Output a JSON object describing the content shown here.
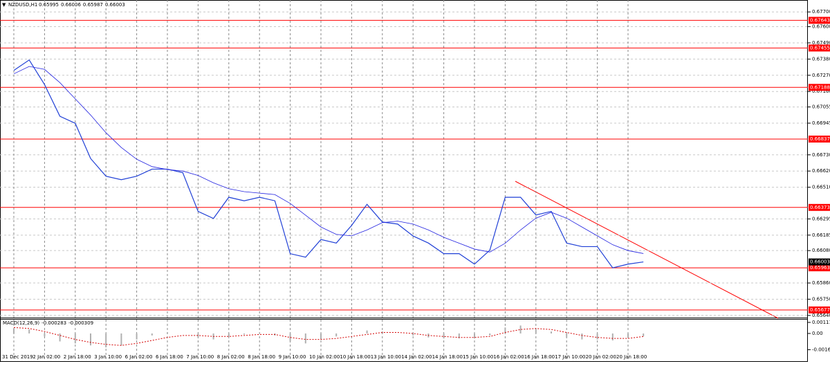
{
  "chart_data": {
    "type": "line",
    "title": "NZDUSD,H1",
    "ohlc": [
      0.65995,
      0.66006,
      0.65987,
      0.66003
    ],
    "categories": [
      "31 Dec 2019",
      null,
      "2 Jan 02:00",
      null,
      "2 Jan 18:00",
      null,
      "3 Jan 10:00",
      null,
      "6 Jan 02:00",
      null,
      "6 Jan 18:00",
      null,
      "7 Jan 10:00",
      null,
      "8 Jan 02:00",
      null,
      "8 Jan 18:00",
      null,
      "9 Jan 10:00",
      null,
      "10 Jan 02:00",
      null,
      "10 Jan 18:00",
      null,
      "13 Jan 10:00",
      null,
      "14 Jan 02:00",
      null,
      "14 Jan 18:00",
      null,
      "15 Jan 10:00",
      null,
      "16 Jan 02:00",
      null,
      "16 Jan 18:00",
      null,
      "17 Jan 10:00",
      null,
      "20 Jan 02:00",
      null,
      "20 Jan 18:00",
      null
    ],
    "series": [
      {
        "color": "#1f3fd6",
        "values": [
          0.67303,
          0.67374,
          0.67207,
          0.66992,
          0.66944,
          0.66705,
          0.66585,
          0.66561,
          0.66585,
          0.66633,
          0.66633,
          0.66609,
          0.66346,
          0.66298,
          0.66442,
          0.66418,
          0.66442,
          0.66418,
          0.66059,
          0.66035,
          0.66155,
          0.66131,
          0.66251,
          0.66394,
          0.66274,
          0.6626,
          0.66179,
          0.66131,
          0.66059,
          0.66059,
          0.65988,
          0.66083,
          0.66442,
          0.66442,
          0.66322,
          0.66346,
          0.66131,
          0.66107,
          0.66107,
          0.65963,
          0.65988,
          0.66003
        ]
      },
      {
        "color": "#2020e0",
        "values": [
          0.6728,
          0.6733,
          0.6731,
          0.6722,
          0.6711,
          0.67,
          0.6688,
          0.6678,
          0.667,
          0.6665,
          0.6663,
          0.6662,
          0.6659,
          0.6654,
          0.665,
          0.6648,
          0.6647,
          0.6646,
          0.664,
          0.6632,
          0.6624,
          0.6619,
          0.6618,
          0.6622,
          0.6627,
          0.6628,
          0.6626,
          0.6622,
          0.6617,
          0.6613,
          0.6609,
          0.6607,
          0.6613,
          0.6622,
          0.663,
          0.6634,
          0.663,
          0.6624,
          0.6618,
          0.6612,
          0.6608,
          0.6606
        ]
      }
    ],
    "ylim": [
      0.6563,
      0.67781
    ],
    "yticks": [
      {
        "value": 0.677,
        "label": "0.67700"
      },
      {
        "value": 0.676,
        "label": "0.67600"
      },
      {
        "value": 0.6749,
        "label": "0.67490"
      },
      {
        "value": 0.6738,
        "label": "0.67380"
      },
      {
        "value": 0.6727,
        "label": "0.67270"
      },
      {
        "value": 0.6716,
        "label": "0.67160"
      },
      0.67055,
      0.66945,
      {
        "value": 0.6673,
        "label": "0.66730"
      },
      {
        "value": 0.6662,
        "label": "0.66620"
      },
      {
        "value": 0.6651,
        "label": "0.66510"
      },
      0.66295,
      0.66185,
      {
        "value": 0.6608,
        "label": "0.66080"
      },
      {
        "value": 0.6586,
        "label": "0.65860"
      },
      {
        "value": 0.6575,
        "label": "0.65750"
      },
      {
        "value": 0.6564,
        "label": "0.65640"
      }
    ],
    "grid": true,
    "levels": {
      "color": "#ff0000",
      "values": [
        0.67643,
        0.67455,
        0.67188,
        0.66837,
        0.66373,
        0.65963,
        0.65677
      ]
    },
    "current_price": 0.66003,
    "macd": {
      "label": "MACD(12,26,9)",
      "readout": [
        -0.000283,
        -0.000309
      ],
      "ylim": [
        -0.00195,
        0.00139
      ],
      "yticks": [
        0.001113,
        {
          "value": 0,
          "label": "0.00"
        },
        -0.001631
      ],
      "histogram": [
        0.0005,
        0.0004,
        -0.0003,
        -0.0008,
        -0.001,
        -0.0012,
        -0.0014,
        -0.0012,
        -0.0006,
        -0.0002,
        0.0001,
        0,
        -0.0004,
        -0.0006,
        -0.0003,
        -0.0001,
        0,
        -0.0002,
        -0.0008,
        -0.001,
        -0.0006,
        -0.0003,
        0,
        0.0003,
        0.0002,
        0,
        -0.0002,
        -0.0004,
        -0.0005,
        -0.0005,
        -0.0005,
        -0.0002,
        0.0006,
        0.0008,
        0.0004,
        0.0002,
        -0.0004,
        -0.0006,
        -0.0006,
        -0.0007,
        -0.0004,
        -0.000283
      ],
      "signal": [
        0.0006,
        0.0005,
        0.0002,
        -0.0002,
        -0.0006,
        -0.0009,
        -0.0011,
        -0.0012,
        -0.001,
        -0.0007,
        -0.0004,
        -0.0002,
        -0.0002,
        -0.0003,
        -0.0003,
        -0.0002,
        -0.0001,
        -0.0001,
        -0.0004,
        -0.0006,
        -0.0006,
        -0.0005,
        -0.0003,
        -0.0001,
        0.0001,
        0.0001,
        0,
        -0.0002,
        -0.0003,
        -0.0004,
        -0.0004,
        -0.0003,
        0.0001,
        0.0004,
        0.0005,
        0.0004,
        0.0001,
        -0.0002,
        -0.0004,
        -0.0005,
        -0.0005,
        -0.000309
      ],
      "signal_color": "#d40000",
      "histogram_color": "#b0b0b0"
    }
  }
}
